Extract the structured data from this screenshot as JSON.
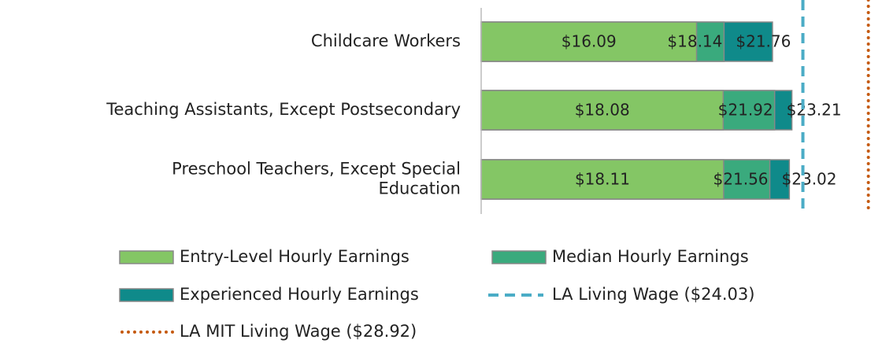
{
  "chart_data": {
    "type": "bar",
    "orientation": "horizontal",
    "categories": [
      "Childcare Workers",
      "Teaching Assistants, Except Postsecondary",
      "Preschool Teachers, Except Special Education"
    ],
    "series": [
      {
        "name": "Entry-Level Hourly Earnings",
        "color": "#84c665",
        "values": [
          16.09,
          18.08,
          18.11
        ],
        "value_labels": [
          "$16.09",
          "$18.08",
          "$18.11"
        ]
      },
      {
        "name": "Median Hourly Earnings",
        "color": "#3aaa7d",
        "values": [
          18.14,
          21.92,
          21.56
        ],
        "value_labels": [
          "$18.14",
          "$21.92",
          "$21.56"
        ]
      },
      {
        "name": "Experienced Hourly Earnings",
        "color": "#0f8a8a",
        "values": [
          21.76,
          23.21,
          23.02
        ],
        "value_labels": [
          "$21.76",
          "$23.21",
          "$23.02"
        ]
      }
    ],
    "reference_lines": [
      {
        "name": "LA Living Wage ($24.03)",
        "value": 24.03,
        "color": "#4bacc6",
        "style": "dashed"
      },
      {
        "name": "LA MIT Living Wage ($28.92)",
        "value": 28.92,
        "color": "#c55a11",
        "style": "dotted"
      }
    ],
    "xlim": [
      0,
      29
    ],
    "legend": "bottom"
  }
}
